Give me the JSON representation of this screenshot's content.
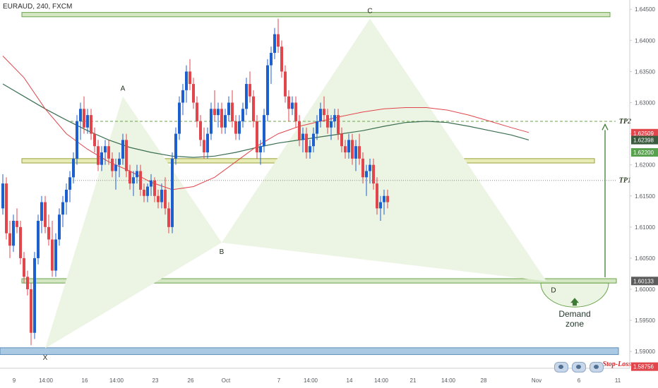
{
  "symbol": "EURAUD, 240, FXCM",
  "colors": {
    "up": "#1e5fd0",
    "down": "#e0464c",
    "ma_red": "#e0464c",
    "ma_green": "#3b6e52",
    "zone_fill": "#d4e6c2",
    "zone_border": "#6aa44b",
    "pattern_fill": "#ecf4e3",
    "stop_fill": "#aac9e2",
    "stop_border": "#5d8cb8",
    "axis_text": "#55585e",
    "arrow": "#3e7c35",
    "tp_text": "#2a3a22",
    "stop_text": "#d7262b",
    "label_red": "#e0464c",
    "label_green_dark": "#3a5b3e",
    "label_green": "#59a14f",
    "label_gray": "#5c5c5c"
  },
  "icons": [
    "broadcast-icon",
    "broadcast-icon",
    "broadcast-icon"
  ],
  "chart_data": {
    "type": "candlestick",
    "ylim": [
      1.5873,
      1.6465
    ],
    "y_ticks": [
      1.645,
      1.64,
      1.635,
      1.63,
      1.625,
      1.62,
      1.615,
      1.61,
      1.605,
      1.6,
      1.595,
      1.59
    ],
    "y_tick_labels": [
      "1.64500",
      "1.64000",
      "1.63500",
      "1.63000",
      "1.62500",
      "1.62000",
      "1.61500",
      "1.61000",
      "1.60500",
      "1.60000",
      "1.59500",
      "1.59000"
    ],
    "x_ticks": [
      {
        "label": "9",
        "i": 0
      },
      {
        "label": "14:00",
        "i": 9
      },
      {
        "label": "16",
        "i": 20
      },
      {
        "label": "14:00",
        "i": 29
      },
      {
        "label": "23",
        "i": 40
      },
      {
        "label": "26",
        "i": 50
      },
      {
        "label": "Oct",
        "i": 60
      },
      {
        "label": "7",
        "i": 75
      },
      {
        "label": "14:00",
        "i": 84
      },
      {
        "label": "14",
        "i": 95
      },
      {
        "label": "14:00",
        "i": 104
      },
      {
        "label": "21",
        "i": 113
      },
      {
        "label": "14:00",
        "i": 123
      },
      {
        "label": "28",
        "i": 133
      },
      {
        "label": "Nov",
        "i": 148
      },
      {
        "label": "6",
        "i": 160
      },
      {
        "label": "11",
        "i": 171
      }
    ],
    "price_labels": [
      {
        "value": 1.62509,
        "text": "1.62509",
        "color": "label_red"
      },
      {
        "value": 1.62398,
        "text": "1.62398",
        "color": "label_green_dark"
      },
      {
        "value": 1.622,
        "text": "1.62200",
        "color": "label_green"
      },
      {
        "value": 1.60133,
        "text": "1.60133",
        "color": "label_gray"
      },
      {
        "value": 1.58756,
        "text": "1.58756",
        "color": "label_red"
      }
    ],
    "zones": [
      {
        "name": "C-resistance",
        "top": 1.6445,
        "bottom": 1.6438
      },
      {
        "name": "mid-zone",
        "top": 1.621,
        "bottom": 1.6203
      },
      {
        "name": "D-support",
        "top": 1.6017,
        "bottom": 1.601
      },
      {
        "name": "stop-loss-zone",
        "top": 1.5906,
        "bottom": 1.5895
      }
    ],
    "levels": [
      {
        "name": "TP2",
        "value": 1.627,
        "label": "TP2"
      },
      {
        "name": "TP1",
        "value": 1.6175,
        "label": "TP1"
      },
      {
        "name": "Stop-Loss",
        "value": 1.5882,
        "label": "Stop-Loss"
      }
    ],
    "pattern_points": [
      {
        "label": "X",
        "i": 12,
        "price": 1.5905
      },
      {
        "label": "A",
        "i": 34,
        "price": 1.631
      },
      {
        "label": "B",
        "i": 62,
        "price": 1.6075
      },
      {
        "label": "C",
        "i": 104,
        "price": 1.6435
      },
      {
        "label": "D",
        "i": 154,
        "price": 1.6013
      }
    ],
    "annotations": {
      "zone_text": [
        "Demand",
        "zone"
      ],
      "arrow_from": 1.6017,
      "arrow_to": 1.6265
    },
    "candles": [
      [
        1.613,
        1.6185,
        1.612,
        1.617
      ],
      [
        1.617,
        1.618,
        1.608,
        1.609
      ],
      [
        1.609,
        1.611,
        1.605,
        1.607
      ],
      [
        1.607,
        1.612,
        1.606,
        1.611
      ],
      [
        1.611,
        1.613,
        1.609,
        1.61
      ],
      [
        1.61,
        1.611,
        1.604,
        1.605
      ],
      [
        1.605,
        1.606,
        1.601,
        1.602
      ],
      [
        1.602,
        1.603,
        1.599,
        1.6
      ],
      [
        1.6,
        1.601,
        1.591,
        1.593
      ],
      [
        1.593,
        1.606,
        1.592,
        1.605
      ],
      [
        1.605,
        1.612,
        1.604,
        1.611
      ],
      [
        1.611,
        1.615,
        1.609,
        1.614
      ],
      [
        1.614,
        1.615,
        1.609,
        1.61
      ],
      [
        1.61,
        1.612,
        1.607,
        1.608
      ],
      [
        1.608,
        1.611,
        1.602,
        1.603
      ],
      [
        1.603,
        1.609,
        1.602,
        1.608
      ],
      [
        1.608,
        1.613,
        1.607,
        1.612
      ],
      [
        1.612,
        1.615,
        1.61,
        1.614
      ],
      [
        1.614,
        1.617,
        1.612,
        1.616
      ],
      [
        1.616,
        1.619,
        1.614,
        1.618
      ],
      [
        1.618,
        1.622,
        1.617,
        1.621
      ],
      [
        1.621,
        1.628,
        1.62,
        1.627
      ],
      [
        1.627,
        1.63,
        1.624,
        1.629
      ],
      [
        1.629,
        1.631,
        1.625,
        1.626
      ],
      [
        1.626,
        1.629,
        1.625,
        1.628
      ],
      [
        1.628,
        1.629,
        1.624,
        1.625
      ],
      [
        1.625,
        1.626,
        1.622,
        1.623
      ],
      [
        1.623,
        1.624,
        1.619,
        1.62
      ],
      [
        1.62,
        1.623,
        1.619,
        1.622
      ],
      [
        1.622,
        1.624,
        1.62,
        1.623
      ],
      [
        1.623,
        1.624,
        1.62,
        1.621
      ],
      [
        1.621,
        1.622,
        1.618,
        1.619
      ],
      [
        1.619,
        1.621,
        1.616,
        1.62
      ],
      [
        1.62,
        1.622,
        1.618,
        1.621
      ],
      [
        1.621,
        1.625,
        1.62,
        1.624
      ],
      [
        1.624,
        1.625,
        1.618,
        1.619
      ],
      [
        1.619,
        1.62,
        1.616,
        1.617
      ],
      [
        1.617,
        1.619,
        1.615,
        1.618
      ],
      [
        1.618,
        1.62,
        1.617,
        1.619
      ],
      [
        1.619,
        1.62,
        1.615,
        1.616
      ],
      [
        1.616,
        1.617,
        1.614,
        1.615
      ],
      [
        1.615,
        1.617,
        1.614,
        1.6165
      ],
      [
        1.6165,
        1.6185,
        1.615,
        1.6175
      ],
      [
        1.6175,
        1.618,
        1.614,
        1.615
      ],
      [
        1.615,
        1.616,
        1.613,
        1.614
      ],
      [
        1.614,
        1.617,
        1.613,
        1.616
      ],
      [
        1.616,
        1.618,
        1.612,
        1.613
      ],
      [
        1.613,
        1.614,
        1.609,
        1.61
      ],
      [
        1.61,
        1.622,
        1.609,
        1.621
      ],
      [
        1.621,
        1.626,
        1.62,
        1.625
      ],
      [
        1.625,
        1.631,
        1.624,
        1.63
      ],
      [
        1.63,
        1.633,
        1.628,
        1.632
      ],
      [
        1.632,
        1.636,
        1.63,
        1.635
      ],
      [
        1.635,
        1.637,
        1.632,
        1.633
      ],
      [
        1.633,
        1.634,
        1.629,
        1.63
      ],
      [
        1.63,
        1.631,
        1.626,
        1.627
      ],
      [
        1.627,
        1.628,
        1.623,
        1.624
      ],
      [
        1.624,
        1.626,
        1.621,
        1.622
      ],
      [
        1.622,
        1.626,
        1.621,
        1.625
      ],
      [
        1.625,
        1.63,
        1.624,
        1.629
      ],
      [
        1.629,
        1.632,
        1.627,
        1.628
      ],
      [
        1.628,
        1.63,
        1.626,
        1.629
      ],
      [
        1.629,
        1.63,
        1.625,
        1.626
      ],
      [
        1.626,
        1.629,
        1.625,
        1.628
      ],
      [
        1.628,
        1.631,
        1.627,
        1.63
      ],
      [
        1.63,
        1.632,
        1.626,
        1.627
      ],
      [
        1.627,
        1.628,
        1.624,
        1.625
      ],
      [
        1.625,
        1.628,
        1.624,
        1.627
      ],
      [
        1.627,
        1.63,
        1.626,
        1.629
      ],
      [
        1.629,
        1.634,
        1.628,
        1.633
      ],
      [
        1.633,
        1.635,
        1.63,
        1.631
      ],
      [
        1.631,
        1.632,
        1.626,
        1.627
      ],
      [
        1.627,
        1.628,
        1.621,
        1.622
      ],
      [
        1.622,
        1.624,
        1.62,
        1.623
      ],
      [
        1.623,
        1.629,
        1.622,
        1.628
      ],
      [
        1.628,
        1.637,
        1.627,
        1.636
      ],
      [
        1.636,
        1.639,
        1.633,
        1.638
      ],
      [
        1.638,
        1.642,
        1.637,
        1.641
      ],
      [
        1.641,
        1.6435,
        1.638,
        1.639
      ],
      [
        1.639,
        1.64,
        1.634,
        1.635
      ],
      [
        1.635,
        1.636,
        1.63,
        1.631
      ],
      [
        1.631,
        1.632,
        1.627,
        1.629
      ],
      [
        1.629,
        1.631,
        1.628,
        1.63
      ],
      [
        1.63,
        1.631,
        1.626,
        1.627
      ],
      [
        1.627,
        1.628,
        1.623,
        1.624
      ],
      [
        1.624,
        1.626,
        1.622,
        1.625
      ],
      [
        1.625,
        1.626,
        1.621,
        1.622
      ],
      [
        1.622,
        1.624,
        1.621,
        1.623
      ],
      [
        1.623,
        1.626,
        1.622,
        1.625
      ],
      [
        1.625,
        1.628,
        1.624,
        1.627
      ],
      [
        1.627,
        1.63,
        1.626,
        1.629
      ],
      [
        1.629,
        1.631,
        1.627,
        1.628
      ],
      [
        1.628,
        1.629,
        1.625,
        1.626
      ],
      [
        1.626,
        1.628,
        1.624,
        1.627
      ],
      [
        1.627,
        1.629,
        1.626,
        1.628
      ],
      [
        1.628,
        1.629,
        1.624,
        1.625
      ],
      [
        1.625,
        1.626,
        1.622,
        1.623
      ],
      [
        1.623,
        1.624,
        1.621,
        1.622
      ],
      [
        1.622,
        1.625,
        1.621,
        1.624
      ],
      [
        1.624,
        1.625,
        1.62,
        1.621
      ],
      [
        1.621,
        1.624,
        1.619,
        1.623
      ],
      [
        1.623,
        1.625,
        1.62,
        1.621
      ],
      [
        1.621,
        1.622,
        1.617,
        1.618
      ],
      [
        1.618,
        1.62,
        1.615,
        1.619
      ],
      [
        1.619,
        1.621,
        1.617,
        1.62
      ],
      [
        1.62,
        1.621,
        1.616,
        1.617
      ],
      [
        1.617,
        1.618,
        1.612,
        1.613
      ],
      [
        1.613,
        1.615,
        1.611,
        1.614
      ],
      [
        1.614,
        1.616,
        1.612,
        1.615
      ],
      [
        1.615,
        1.616,
        1.613,
        1.614
      ]
    ],
    "ma_red": [
      [
        0,
        1.6375
      ],
      [
        6,
        1.634
      ],
      [
        12,
        1.629
      ],
      [
        18,
        1.625
      ],
      [
        24,
        1.6225
      ],
      [
        30,
        1.6205
      ],
      [
        36,
        1.619
      ],
      [
        42,
        1.6172
      ],
      [
        48,
        1.616
      ],
      [
        54,
        1.6165
      ],
      [
        60,
        1.618
      ],
      [
        66,
        1.6205
      ],
      [
        72,
        1.623
      ],
      [
        78,
        1.625
      ],
      [
        84,
        1.6262
      ],
      [
        90,
        1.627
      ],
      [
        96,
        1.6278
      ],
      [
        102,
        1.6285
      ],
      [
        108,
        1.629
      ],
      [
        114,
        1.6292
      ],
      [
        120,
        1.6292
      ],
      [
        126,
        1.6288
      ],
      [
        132,
        1.628
      ],
      [
        138,
        1.627
      ],
      [
        144,
        1.626
      ],
      [
        149,
        1.6252
      ]
    ],
    "ma_green": [
      [
        0,
        1.633
      ],
      [
        6,
        1.631
      ],
      [
        12,
        1.629
      ],
      [
        18,
        1.6272
      ],
      [
        24,
        1.6255
      ],
      [
        30,
        1.624
      ],
      [
        36,
        1.6228
      ],
      [
        42,
        1.622
      ],
      [
        48,
        1.6214
      ],
      [
        54,
        1.6212
      ],
      [
        60,
        1.6214
      ],
      [
        66,
        1.622
      ],
      [
        72,
        1.6228
      ],
      [
        78,
        1.6235
      ],
      [
        84,
        1.624
      ],
      [
        90,
        1.6245
      ],
      [
        96,
        1.625
      ],
      [
        102,
        1.6255
      ],
      [
        108,
        1.6262
      ],
      [
        114,
        1.6268
      ],
      [
        120,
        1.627
      ],
      [
        126,
        1.6268
      ],
      [
        132,
        1.6262
      ],
      [
        138,
        1.6255
      ],
      [
        144,
        1.6248
      ],
      [
        149,
        1.624
      ]
    ]
  }
}
